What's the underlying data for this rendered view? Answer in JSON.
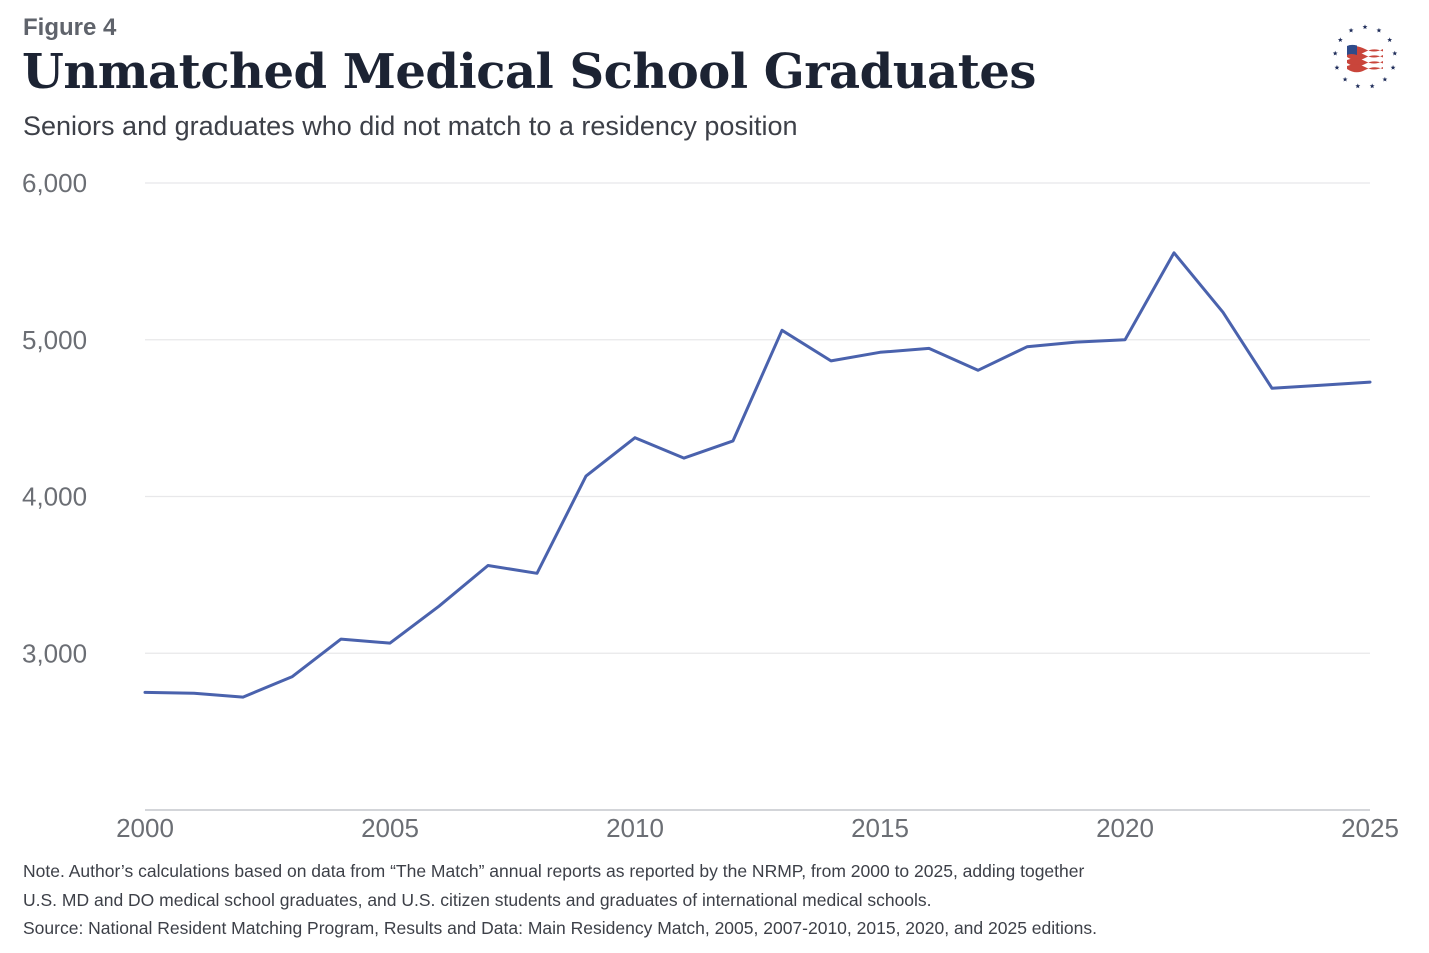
{
  "header": {
    "figure_label": "Figure 4",
    "title": "Unmatched Medical School Graduates",
    "subtitle": "Seniors and graduates who did not match to a residency position"
  },
  "logo": {
    "icon": "flag-with-stars-circle-icon",
    "colors": {
      "stars": "#1f2d5a",
      "stripes_red": "#c9453b",
      "canton": "#2f4b8a"
    }
  },
  "chart_data": {
    "type": "line",
    "title": "Unmatched Medical School Graduates",
    "subtitle": "Seniors and graduates who did not match to a residency position",
    "xlabel": "",
    "ylabel": "",
    "x": [
      2000,
      2001,
      2002,
      2003,
      2004,
      2005,
      2006,
      2007,
      2008,
      2009,
      2010,
      2011,
      2012,
      2013,
      2014,
      2015,
      2016,
      2017,
      2018,
      2019,
      2020,
      2021,
      2022,
      2023,
      2024,
      2025
    ],
    "series": [
      {
        "values": [
          2750,
          2745,
          2720,
          2850,
          3090,
          3065,
          3300,
          3560,
          3510,
          4130,
          4375,
          4245,
          4355,
          5060,
          4865,
          4920,
          4945,
          4805,
          4955,
          4985,
          5000,
          5555,
          5175,
          4690,
          4710,
          4730
        ],
        "color": "#4a62ad"
      }
    ],
    "xlim": [
      2000,
      2025
    ],
    "ylim": [
      2000,
      6000
    ],
    "x_ticks": [
      "2000",
      "2005",
      "2010",
      "2015",
      "2020",
      "2025"
    ],
    "y_ticks": [
      "3,000",
      "4,000",
      "5,000",
      "6,000"
    ],
    "grid": true,
    "legend": "none"
  },
  "notes": {
    "line1": "Note. Author’s calculations based on data from “The Match” annual reports as reported by the NRMP, from 2000 to 2025, adding together",
    "line2": "U.S. MD and DO medical school graduates, and U.S. citizen students and graduates of international medical schools.",
    "line3": "Source: National Resident Matching Program, Results and Data: Main Residency Match, 2005, 2007-2010, 2015, 2020, and 2025 editions."
  }
}
